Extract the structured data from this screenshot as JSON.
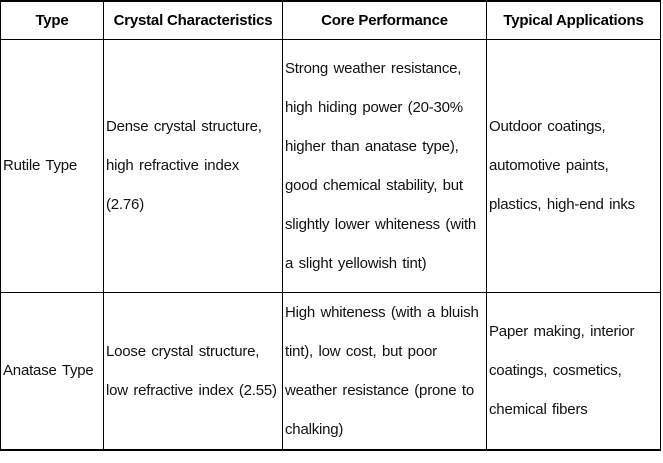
{
  "table": {
    "headers": [
      "Type",
      "Crystal Characteristics",
      "Core Performance",
      "Typical Applications"
    ],
    "rows": [
      {
        "type": "Rutile Type",
        "crystal_characteristics": "Dense crystal structure, high refractive index (2.76)",
        "core_performance": "Strong weather resistance, high hiding power (20-30% higher than anatase type), good chemical stability, but slightly lower whiteness (with a slight yellowish tint)",
        "typical_applications": "Outdoor coatings, automotive paints, plastics, high-end inks"
      },
      {
        "type": "Anatase Type",
        "crystal_characteristics": "Loose crystal structure, low refractive index (2.55)",
        "core_performance": "High whiteness (with a bluish tint), low cost, but poor weather resistance (prone to chalking)",
        "typical_applications": "Paper making, interior coatings, cosmetics, chemical fibers"
      }
    ]
  },
  "colors": {
    "border": "#000000",
    "text": "#111111",
    "background": "#ffffff"
  }
}
